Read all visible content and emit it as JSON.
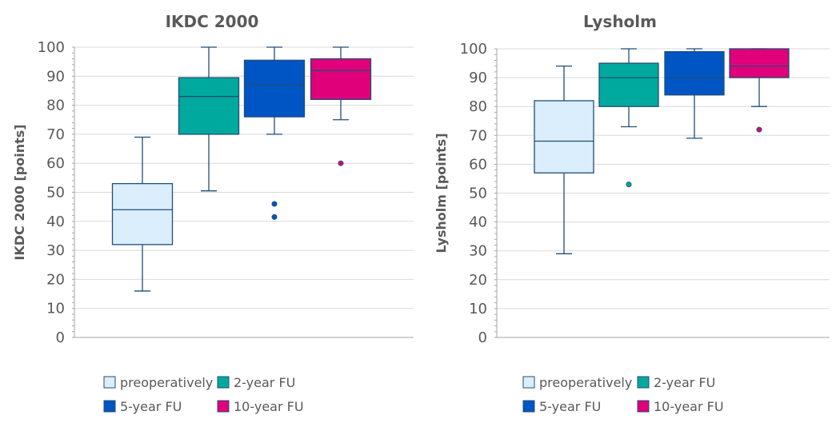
{
  "chart_data": [
    {
      "type": "box",
      "title": "IKDC 2000",
      "ylabel": "IKDC 2000 [points]",
      "xlabel": "",
      "ylim": [
        0,
        100
      ],
      "yticks": [
        0,
        10,
        20,
        30,
        40,
        50,
        60,
        70,
        80,
        90,
        100
      ],
      "grid": true,
      "legend_position": "bottom",
      "series": [
        {
          "name": "preoperatively",
          "color": "#daeefb",
          "stroke": "#1f4e79",
          "min": 16,
          "q1": 32,
          "median": 44,
          "q3": 53,
          "max": 69,
          "outliers": []
        },
        {
          "name": "2-year FU",
          "color": "#00a99d",
          "stroke": "#1f4e79",
          "min": 50.5,
          "q1": 70,
          "median": 83,
          "q3": 89.5,
          "max": 100,
          "outliers": []
        },
        {
          "name": "5-year FU",
          "color": "#0055c4",
          "stroke": "#1f4e79",
          "min": 70,
          "q1": 76,
          "median": 87,
          "q3": 95.5,
          "max": 100,
          "outliers": [
            46,
            41.5
          ]
        },
        {
          "name": "10-year FU",
          "color": "#e0007a",
          "stroke": "#1f4e79",
          "min": 75,
          "q1": 82,
          "median": 92,
          "q3": 96,
          "max": 100,
          "outliers": [
            60
          ]
        }
      ]
    },
    {
      "type": "box",
      "title": "Lysholm",
      "ylabel": "Lysholm [points]",
      "xlabel": "",
      "ylim": [
        0,
        100
      ],
      "yticks": [
        0,
        10,
        20,
        30,
        40,
        50,
        60,
        70,
        80,
        90,
        100
      ],
      "grid": true,
      "legend_position": "bottom",
      "series": [
        {
          "name": "preoperatively",
          "color": "#daeefb",
          "stroke": "#1f4e79",
          "min": 29,
          "q1": 57,
          "median": 68,
          "q3": 82,
          "max": 94,
          "outliers": []
        },
        {
          "name": "2-year FU",
          "color": "#00a99d",
          "stroke": "#1f4e79",
          "min": 73,
          "q1": 80,
          "median": 90,
          "q3": 95,
          "max": 100,
          "outliers": [
            53
          ]
        },
        {
          "name": "5-year FU",
          "color": "#0055c4",
          "stroke": "#1f4e79",
          "min": 69,
          "q1": 84,
          "median": 90,
          "q3": 99,
          "max": 100,
          "outliers": []
        },
        {
          "name": "10-year FU",
          "color": "#e0007a",
          "stroke": "#1f4e79",
          "min": 80,
          "q1": 90,
          "median": 94,
          "q3": 100,
          "max": 100,
          "outliers": [
            72
          ]
        }
      ]
    }
  ]
}
